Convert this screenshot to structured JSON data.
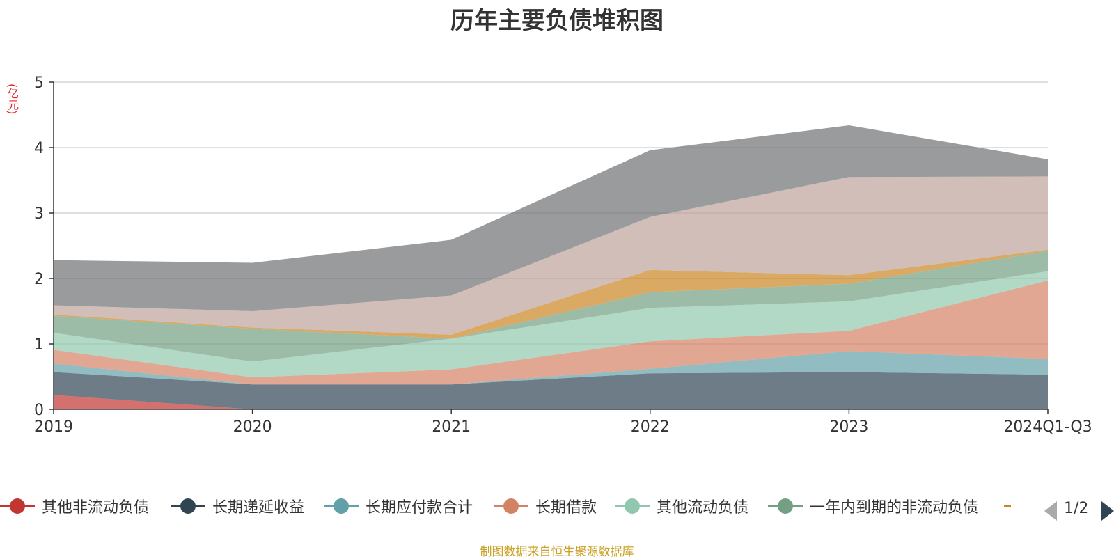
{
  "chart_data": {
    "type": "area",
    "title": "历年主要负债堆积图",
    "ylabel": "(亿元)",
    "ylim": [
      0,
      5
    ],
    "yticks": [
      "0",
      "1",
      "2",
      "3",
      "4",
      "5"
    ],
    "categories": [
      "2019",
      "2020",
      "2021",
      "2022",
      "2023",
      "2024Q1-Q3"
    ],
    "stacked": true,
    "grid": true,
    "legend_position": "bottom",
    "series": [
      {
        "name": "其他非流动负债",
        "color": "#c23531",
        "values": [
          0.22,
          0.0,
          0.0,
          0.0,
          0.0,
          0.0
        ]
      },
      {
        "name": "长期递延收益",
        "color": "#2f4554",
        "values": [
          0.35,
          0.38,
          0.38,
          0.55,
          0.57,
          0.53
        ]
      },
      {
        "name": "长期应付款合计",
        "color": "#61a0a8",
        "values": [
          0.13,
          0.0,
          0.0,
          0.07,
          0.32,
          0.24
        ]
      },
      {
        "name": "长期借款",
        "color": "#d48265",
        "values": [
          0.21,
          0.11,
          0.23,
          0.42,
          0.31,
          1.2
        ]
      },
      {
        "name": "其他流动负债",
        "color": "#91c7ae",
        "values": [
          0.26,
          0.24,
          0.47,
          0.51,
          0.45,
          0.14
        ]
      },
      {
        "name": "一年内到期的非流动负债",
        "color": "#749f83",
        "values": [
          0.26,
          0.5,
          0.0,
          0.24,
          0.27,
          0.31
        ]
      },
      {
        "name": "",
        "color": "#ca8622",
        "values": [
          0.02,
          0.02,
          0.06,
          0.34,
          0.13,
          0.02
        ]
      },
      {
        "name": "",
        "color": "#bda29a",
        "values": [
          0.14,
          0.25,
          0.6,
          0.81,
          1.5,
          1.12
        ]
      },
      {
        "name": "",
        "color": "#6e7074",
        "values": [
          0.69,
          0.74,
          0.85,
          1.02,
          0.79,
          0.26
        ]
      }
    ]
  },
  "legend": {
    "page": "1/2",
    "prev_icon": "triangle-left-icon",
    "next_icon": "triangle-right-icon"
  },
  "footer": {
    "source": "制图数据来自恒生聚源数据库"
  }
}
